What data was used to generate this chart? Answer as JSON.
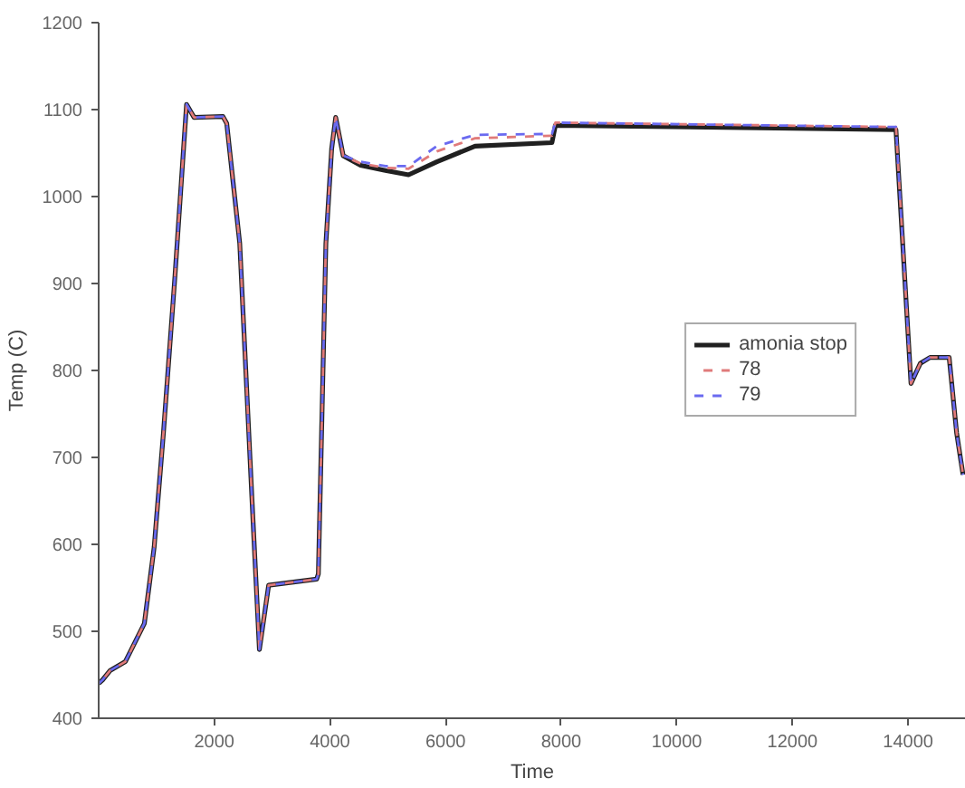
{
  "chart_data": {
    "type": "line",
    "xlabel": "Time",
    "ylabel": "Temp (C)",
    "x": [
      0,
      66,
      200,
      460,
      790,
      960,
      1120,
      1320,
      1520,
      1650,
      2150,
      2215,
      2440,
      2650,
      2780,
      2940,
      3770,
      3800,
      3930,
      4030,
      4100,
      4230,
      4530,
      4960,
      5360,
      5850,
      6510,
      7840,
      7900,
      13790,
      14050,
      14210,
      14380,
      14710,
      14840,
      14950
    ],
    "series": [
      {
        "name": "amonia stop",
        "color": "#202020",
        "values": [
          440,
          444,
          455,
          465,
          509,
          597,
          728,
          909,
          1106,
          1091,
          1092,
          1084,
          946,
          654,
          479,
          553,
          560,
          566,
          946,
          1055,
          1091,
          1047,
          1036,
          1030,
          1025,
          1040,
          1058,
          1062,
          1082,
          1077,
          785,
          808,
          815,
          815,
          728,
          680
        ]
      },
      {
        "name": "78",
        "color": "#e07a7a",
        "line_style": "dashed",
        "values": [
          440,
          444,
          455,
          465,
          509,
          597,
          728,
          909,
          1106,
          1091,
          1092,
          1084,
          946,
          654,
          479,
          553,
          560,
          566,
          946,
          1055,
          1091,
          1047,
          1038,
          1033,
          1032,
          1052,
          1067,
          1070,
          1085,
          1080,
          785,
          808,
          815,
          815,
          728,
          680
        ]
      },
      {
        "name": "79",
        "color": "#6a6af0",
        "line_style": "dashed",
        "values": [
          440,
          444,
          455,
          465,
          509,
          597,
          728,
          909,
          1106,
          1091,
          1092,
          1084,
          946,
          654,
          479,
          553,
          560,
          566,
          946,
          1055,
          1091,
          1047,
          1040,
          1035,
          1035,
          1058,
          1071,
          1072,
          1085,
          1080,
          785,
          808,
          815,
          815,
          728,
          680
        ]
      }
    ],
    "xlim": [
      0,
      15000
    ],
    "ylim": [
      400,
      1200
    ],
    "xticks": [
      {
        "value": 2000,
        "label": "2000"
      },
      4000,
      6000,
      8000,
      10000,
      12000,
      14000
    ],
    "yticks": [
      400,
      500,
      600,
      700,
      800,
      900,
      1000,
      1100,
      1200
    ],
    "grid": false,
    "legend": "right",
    "line_style": "solid",
    "marker": "none"
  }
}
